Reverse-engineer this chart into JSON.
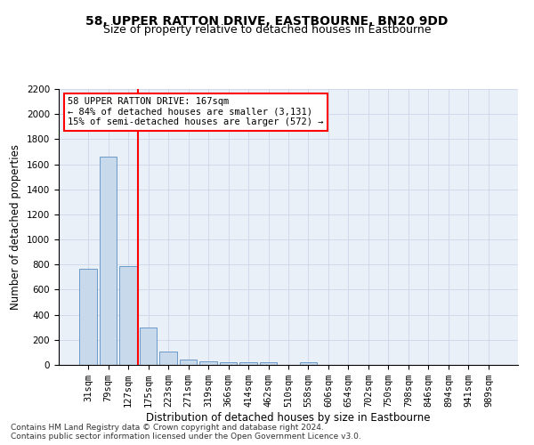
{
  "title": "58, UPPER RATTON DRIVE, EASTBOURNE, BN20 9DD",
  "subtitle": "Size of property relative to detached houses in Eastbourne",
  "xlabel": "Distribution of detached houses by size in Eastbourne",
  "ylabel": "Number of detached properties",
  "categories": [
    "31sqm",
    "79sqm",
    "127sqm",
    "175sqm",
    "223sqm",
    "271sqm",
    "319sqm",
    "366sqm",
    "414sqm",
    "462sqm",
    "510sqm",
    "558sqm",
    "606sqm",
    "654sqm",
    "702sqm",
    "750sqm",
    "798sqm",
    "846sqm",
    "894sqm",
    "941sqm",
    "989sqm"
  ],
  "values": [
    770,
    1660,
    790,
    300,
    110,
    40,
    30,
    20,
    20,
    20,
    0,
    20,
    0,
    0,
    0,
    0,
    0,
    0,
    0,
    0,
    0
  ],
  "bar_color": "#c9d9ec",
  "bar_edge_color": "#5a8fc0",
  "property_line_x": 2.5,
  "annotation_text": "58 UPPER RATTON DRIVE: 167sqm\n← 84% of detached houses are smaller (3,131)\n15% of semi-detached houses are larger (572) →",
  "annotation_box_color": "white",
  "annotation_box_edge_color": "red",
  "vline_color": "red",
  "ylim": [
    0,
    2200
  ],
  "yticks": [
    0,
    200,
    400,
    600,
    800,
    1000,
    1200,
    1400,
    1600,
    1800,
    2000,
    2200
  ],
  "footnote": "Contains HM Land Registry data © Crown copyright and database right 2024.\nContains public sector information licensed under the Open Government Licence v3.0.",
  "title_fontsize": 10,
  "subtitle_fontsize": 9,
  "xlabel_fontsize": 8.5,
  "ylabel_fontsize": 8.5,
  "tick_fontsize": 7.5,
  "annotation_fontsize": 7.5,
  "footnote_fontsize": 6.5
}
